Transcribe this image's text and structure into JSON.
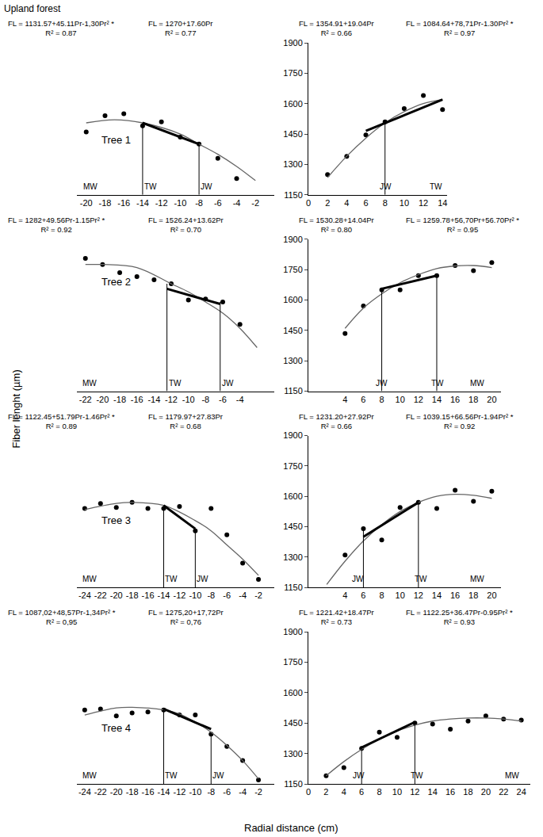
{
  "chart_data": {
    "type": "scatter",
    "title": "Upland forest",
    "x_label": "Radial distance (cm)",
    "y_label": "Fiber lenght (µm)",
    "ylim": [
      1150,
      1900
    ],
    "yticks": [
      1150,
      1300,
      1450,
      1600,
      1750,
      1900
    ],
    "grid": false,
    "panels": [
      {
        "tree_label": "Tree 1",
        "tick_labels": "x",
        "xlim": [
          -21,
          0
        ],
        "xticks": [
          -20,
          -18,
          -16,
          -14,
          -12,
          -10,
          -8,
          -6,
          -4,
          -2
        ],
        "equations": [
          {
            "text": "FL = 1131.57+45.11Pr-1,30Pr² *",
            "r2": "R² = 0.87"
          },
          {
            "text": "FL = 1270+17.60Pr",
            "r2": "R² = 0.77"
          }
        ],
        "labels": [
          {
            "text": "MW",
            "x": -20.5
          },
          {
            "text": "TW",
            "x": -14
          },
          {
            "text": "JW",
            "x": -8
          }
        ],
        "boundaries": [
          {
            "x": -14,
            "y": 1505
          },
          {
            "x": -8,
            "y": 1400
          }
        ],
        "series": [
          {
            "type": "scatter",
            "marker": "circle",
            "color": "#000000",
            "x": [
              -20,
              -18,
              -16,
              -14,
              -12,
              -10,
              -8,
              -6,
              -4
            ],
            "values": [
              1460,
              1540,
              1550,
              1490,
              1510,
              1435,
              1400,
              1330,
              1230
            ]
          },
          {
            "type": "line",
            "line_style": "solid",
            "color": "#666666",
            "x": [
              -20,
              -17,
              -14,
              -10,
              -8,
              -6,
              -4,
              -2
            ],
            "values": [
              1505,
              1520,
              1505,
              1450,
              1400,
              1350,
              1290,
              1220
            ]
          },
          {
            "type": "line",
            "line_style": "bold",
            "color": "#000000",
            "x": [
              -14,
              -8
            ],
            "values": [
              1505,
              1400
            ]
          }
        ]
      },
      {
        "xlim": [
          0,
          14.5
        ],
        "xticks": [
          0,
          2,
          4,
          6,
          8,
          10,
          12,
          14
        ],
        "equations": [
          {
            "text": "FL = 1354.91+19.04Pr",
            "r2": "R² = 0.66"
          },
          {
            "text": "FL = 1084.64+78,71Pr-1.30Pr² *",
            "r2": "R² = 0.97"
          }
        ],
        "labels": [
          {
            "text": "JW",
            "x": 7.3
          },
          {
            "text": "TW",
            "x": 12.5
          }
        ],
        "boundaries": [
          {
            "x": 8,
            "y": 1510
          }
        ],
        "series": [
          {
            "type": "scatter",
            "marker": "circle",
            "color": "#000000",
            "x": [
              2,
              4,
              6,
              8,
              10,
              12,
              14
            ],
            "values": [
              1250,
              1340,
              1445,
              1510,
              1575,
              1640,
              1570
            ]
          },
          {
            "type": "line",
            "line_style": "solid",
            "color": "#666666",
            "x": [
              2,
              4,
              6,
              8,
              10,
              12,
              14
            ],
            "values": [
              1235,
              1340,
              1430,
              1505,
              1560,
              1600,
              1620
            ]
          },
          {
            "type": "line",
            "line_style": "bold",
            "color": "#000000",
            "x": [
              6,
              14
            ],
            "values": [
              1465,
              1620
            ]
          }
        ]
      },
      {
        "tree_label": "Tree 2",
        "tick_labels": "x",
        "xlim": [
          -23,
          0
        ],
        "xticks": [
          -22,
          -20,
          -18,
          -16,
          -14,
          -12,
          -10,
          -8,
          -6,
          -4
        ],
        "equations": [
          {
            "text": "FL = 1282+49.56Pr-1.15Pr² *",
            "r2": "R² = 0.92"
          },
          {
            "text": "FL = 1526.24+13.62Pr",
            "r2": "R² = 0.70"
          }
        ],
        "labels": [
          {
            "text": "MW",
            "x": -22.5
          },
          {
            "text": "TW",
            "x": -12.5
          },
          {
            "text": "JW",
            "x": -6.3
          }
        ],
        "boundaries": [
          {
            "x": -12.5,
            "y": 1680
          },
          {
            "x": -6.3,
            "y": 1590
          }
        ],
        "series": [
          {
            "type": "scatter",
            "marker": "circle",
            "color": "#000000",
            "x": [
              -22,
              -20,
              -18,
              -16,
              -14,
              -12,
              -10,
              -8,
              -6,
              -4
            ],
            "values": [
              1805,
              1775,
              1735,
              1715,
              1700,
              1680,
              1600,
              1605,
              1590,
              1480
            ]
          },
          {
            "type": "line",
            "line_style": "solid",
            "color": "#666666",
            "x": [
              -22,
              -20,
              -16,
              -12,
              -10,
              -8,
              -6,
              -4,
              -2
            ],
            "values": [
              1775,
              1775,
              1760,
              1680,
              1640,
              1590,
              1535,
              1460,
              1365
            ]
          },
          {
            "type": "line",
            "line_style": "bold",
            "color": "#000000",
            "x": [
              -12.5,
              -6.3
            ],
            "values": [
              1655,
              1580
            ]
          }
        ]
      },
      {
        "xlim": [
          0,
          21
        ],
        "xticks": [
          4,
          6,
          8,
          10,
          12,
          14,
          16,
          18,
          20
        ],
        "equations": [
          {
            "text": "FL = 1530.28+14.04Pr",
            "r2": "R² = 0.80"
          },
          {
            "text": "FL = 1259.78+56,70Pr+56.70Pr² *",
            "r2": "R² = 0.95"
          }
        ],
        "labels": [
          {
            "text": "JW",
            "x": 7.2
          },
          {
            "text": "TW",
            "x": 13.2
          },
          {
            "text": "MW",
            "x": 17.5
          }
        ],
        "boundaries": [
          {
            "x": 8,
            "y": 1655
          },
          {
            "x": 14,
            "y": 1720
          }
        ],
        "series": [
          {
            "type": "scatter",
            "marker": "circle",
            "color": "#000000",
            "x": [
              4,
              6,
              8,
              10,
              12,
              14,
              16,
              18,
              20
            ],
            "values": [
              1435,
              1570,
              1650,
              1650,
              1720,
              1720,
              1770,
              1745,
              1785
            ]
          },
          {
            "type": "line",
            "line_style": "solid",
            "color": "#666666",
            "x": [
              4,
              6,
              8,
              10,
              12,
              14,
              16,
              18,
              20
            ],
            "values": [
              1460,
              1560,
              1630,
              1685,
              1725,
              1755,
              1768,
              1770,
              1760
            ]
          },
          {
            "type": "line",
            "line_style": "bold",
            "color": "#000000",
            "x": [
              8,
              14
            ],
            "values": [
              1655,
              1720
            ]
          }
        ]
      },
      {
        "tree_label": "Tree 3",
        "tick_labels": "x",
        "xlim": [
          -25,
          0
        ],
        "xticks": [
          -24,
          -22,
          -20,
          -18,
          -16,
          -14,
          -12,
          -10,
          -8,
          -6,
          -4,
          -2
        ],
        "equations": [
          {
            "text": "FL = 1122.45+51.79Pr-1.46Pr² *",
            "r2": "R² = 0.89"
          },
          {
            "text": "FL = 1179.97+27.83Pr",
            "r2": "R² = 0.68"
          }
        ],
        "labels": [
          {
            "text": "MW",
            "x": -24.5
          },
          {
            "text": "TW",
            "x": -14
          },
          {
            "text": "JW",
            "x": -10
          }
        ],
        "boundaries": [
          {
            "x": -14,
            "y": 1555
          },
          {
            "x": -10,
            "y": 1440
          }
        ],
        "series": [
          {
            "type": "scatter",
            "marker": "circle",
            "color": "#000000",
            "x": [
              -24,
              -22,
              -20,
              -18,
              -16,
              -14,
              -12,
              -10,
              -8,
              -6,
              -4,
              -2
            ],
            "values": [
              1540,
              1565,
              1545,
              1570,
              1540,
              1540,
              1550,
              1430,
              1540,
              1410,
              1270,
              1190
            ]
          },
          {
            "type": "line",
            "line_style": "solid",
            "color": "#666666",
            "x": [
              -24,
              -20,
              -18,
              -14,
              -10,
              -8,
              -6,
              -4,
              -2
            ],
            "values": [
              1535,
              1565,
              1570,
              1555,
              1480,
              1430,
              1360,
              1290,
              1210
            ]
          },
          {
            "type": "line",
            "line_style": "bold",
            "color": "#000000",
            "x": [
              -14,
              -10
            ],
            "values": [
              1555,
              1440
            ]
          }
        ]
      },
      {
        "xlim": [
          0,
          21
        ],
        "xticks": [
          4,
          6,
          8,
          10,
          12,
          14,
          16,
          18,
          20
        ],
        "equations": [
          {
            "text": "FL = 1231.20+27.92Pr",
            "r2": "R² = 0.66"
          },
          {
            "text": "FL = 1039.15+66.56Pr-1.94Pr² *",
            "r2": "R² = 0.92"
          }
        ],
        "labels": [
          {
            "text": "JW",
            "x": 4.6
          },
          {
            "text": "TW",
            "x": 11.4
          },
          {
            "text": "MW",
            "x": 17.5
          }
        ],
        "boundaries": [
          {
            "x": 6,
            "y": 1440
          },
          {
            "x": 12,
            "y": 1570
          }
        ],
        "series": [
          {
            "type": "scatter",
            "marker": "circle",
            "color": "#000000",
            "x": [
              4,
              6,
              8,
              10,
              12,
              14,
              16,
              18,
              20
            ],
            "values": [
              1310,
              1440,
              1385,
              1545,
              1570,
              1540,
              1630,
              1575,
              1625
            ]
          },
          {
            "type": "line",
            "line_style": "solid",
            "color": "#666666",
            "x": [
              2,
              4,
              6,
              8,
              10,
              12,
              14,
              16,
              18,
              20
            ],
            "values": [
              1165,
              1280,
              1380,
              1460,
              1525,
              1570,
              1600,
              1610,
              1605,
              1590
            ]
          },
          {
            "type": "line",
            "line_style": "bold",
            "color": "#000000",
            "x": [
              6,
              12
            ],
            "values": [
              1400,
              1570
            ]
          }
        ]
      },
      {
        "tree_label": "Tree 4",
        "tick_labels": "x",
        "xlim": [
          -25,
          0
        ],
        "xticks": [
          -24,
          -22,
          -20,
          -18,
          -16,
          -14,
          -12,
          -10,
          -8,
          -6,
          -4,
          -2
        ],
        "equations": [
          {
            "text": "FL = 1087,02+48,57Pr-1,34Pr² *",
            "r2": "R² = 0,95"
          },
          {
            "text": "FL = 1275,20+17,72Pr",
            "r2": "R² = 0,76"
          }
        ],
        "labels": [
          {
            "text": "MW",
            "x": -24.5
          },
          {
            "text": "TW",
            "x": -14
          },
          {
            "text": "JW",
            "x": -8
          }
        ],
        "boundaries": [
          {
            "x": -14,
            "y": 1520
          },
          {
            "x": -8,
            "y": 1400
          }
        ],
        "series": [
          {
            "type": "scatter",
            "marker": "circle",
            "color": "#000000",
            "x": [
              -24,
              -22,
              -20,
              -18,
              -16,
              -14,
              -12,
              -10,
              -8,
              -6,
              -4,
              -2
            ],
            "values": [
              1515,
              1520,
              1485,
              1500,
              1505,
              1515,
              1490,
              1490,
              1395,
              1335,
              1265,
              1170
            ]
          },
          {
            "type": "line",
            "line_style": "solid",
            "color": "#666666",
            "x": [
              -24,
              -20,
              -18,
              -14,
              -12,
              -10,
              -8,
              -6,
              -4,
              -2
            ],
            "values": [
              1490,
              1525,
              1528,
              1515,
              1495,
              1455,
              1405,
              1340,
              1265,
              1175
            ]
          },
          {
            "type": "line",
            "line_style": "bold",
            "color": "#000000",
            "x": [
              -14,
              -8
            ],
            "values": [
              1520,
              1420
            ]
          }
        ]
      },
      {
        "xlim": [
          0,
          25
        ],
        "xticks": [
          0,
          2,
          4,
          6,
          8,
          10,
          12,
          14,
          16,
          18,
          20,
          22,
          24
        ],
        "equations": [
          {
            "text": "FL = 1221.42+18.47Pr",
            "r2": "R² = 0.73"
          },
          {
            "text": "FL = 1122.25+36.47Pr-0.95Pr² *",
            "r2": "R² = 0.93"
          }
        ],
        "labels": [
          {
            "text": "JW",
            "x": 4.8
          },
          {
            "text": "TW",
            "x": 11.3
          },
          {
            "text": "MW",
            "x": 22
          }
        ],
        "boundaries": [
          {
            "x": 6,
            "y": 1325
          },
          {
            "x": 12,
            "y": 1455
          }
        ],
        "series": [
          {
            "type": "scatter",
            "marker": "circle",
            "color": "#000000",
            "x": [
              2,
              4,
              6,
              8,
              10,
              12,
              14,
              16,
              18,
              20,
              22,
              24
            ],
            "values": [
              1190,
              1230,
              1325,
              1405,
              1380,
              1450,
              1445,
              1420,
              1460,
              1485,
              1470,
              1465
            ]
          },
          {
            "type": "line",
            "line_style": "solid",
            "color": "#666666",
            "x": [
              2,
              4,
              6,
              8,
              10,
              12,
              14,
              16,
              18,
              20,
              22,
              24
            ],
            "values": [
              1190,
              1260,
              1320,
              1370,
              1410,
              1440,
              1460,
              1470,
              1475,
              1475,
              1470,
              1460
            ]
          },
          {
            "type": "line",
            "line_style": "bold",
            "color": "#000000",
            "x": [
              6,
              12
            ],
            "values": [
              1330,
              1455
            ]
          }
        ]
      }
    ]
  }
}
